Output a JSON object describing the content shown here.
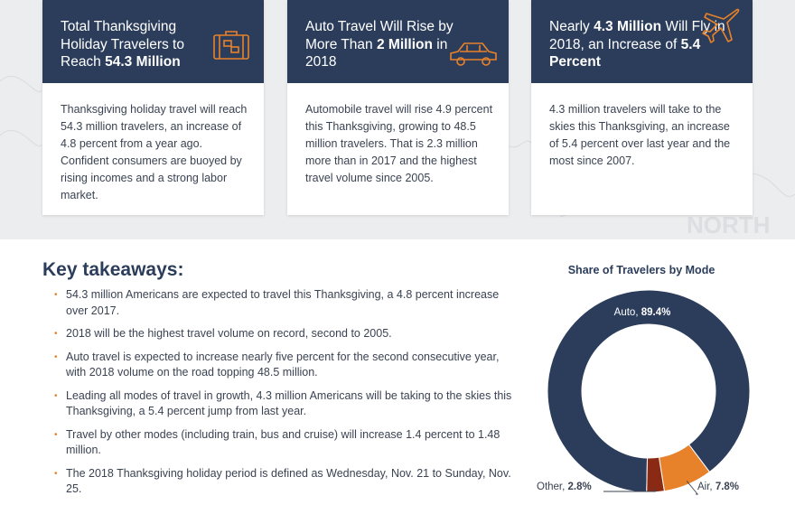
{
  "cards": [
    {
      "title_pre": "Total Thanksgiving Holiday Travelers to Reach ",
      "title_highlight": "54.3 Million",
      "title_post": "",
      "icon": "luggage-icon",
      "body": "Thanksgiving holiday travel will reach 54.3 million travelers, an increase of 4.8 percent from a year ago. Confident consumers are buoyed by rising incomes and a strong labor market."
    },
    {
      "title_pre": "Auto Travel Will Rise by More Than ",
      "title_highlight": "2 Million",
      "title_post": " in 2018",
      "icon": "car-icon",
      "body": "Automobile travel will rise 4.9 percent this Thanksgiving, growing to 48.5 million travelers. That is 2.3 million more than in 2017 and the highest travel volume since 2005."
    },
    {
      "title_pre": "Nearly ",
      "title_highlight": "4.3 Million",
      "title_mid": " Will Fly in 2018, an Increase of ",
      "title_highlight2": "5.4 Percent",
      "icon": "airplane-icon",
      "body": "4.3 million travelers will take to the skies this Thanksgiving, an increase of 5.4 percent over last year and the most since 2007."
    }
  ],
  "takeaways": {
    "heading": "Key takeaways:",
    "items": [
      "54.3 million Americans are expected to travel this Thanksgiving, a 4.8 percent increase over 2017.",
      "2018 will be the highest travel volume on record, second to 2005.",
      "Auto travel is expected to increase nearly five percent for the second consecutive year, with 2018 volume on the road topping 48.5 million.",
      "Leading all modes of travel in growth, 4.3 million Americans will be taking to the skies this Thanksgiving, a 5.4 percent jump from last year.",
      "Travel by other modes (including train, bus and cruise) will increase 1.4 percent to 1.48 million.",
      "The 2018 Thanksgiving holiday period is defined as Wednesday, Nov. 21 to Sunday, Nov. 25."
    ]
  },
  "background_text": "NORTH",
  "chart_data": {
    "type": "pie",
    "title": "Share of Travelers by Mode",
    "categories": [
      "Auto",
      "Air",
      "Other"
    ],
    "values": [
      89.4,
      7.8,
      2.8
    ],
    "labels": [
      "Auto, ",
      "Air, ",
      "Other, "
    ],
    "value_labels": [
      "89.4%",
      "7.8%",
      "2.8%"
    ],
    "colors": [
      "#2b3d5b",
      "#e8822a",
      "#8a2a14"
    ],
    "donut": true
  },
  "colors": {
    "navy": "#2b3d5b",
    "orange": "#e8822a",
    "background": "#ecedef"
  }
}
